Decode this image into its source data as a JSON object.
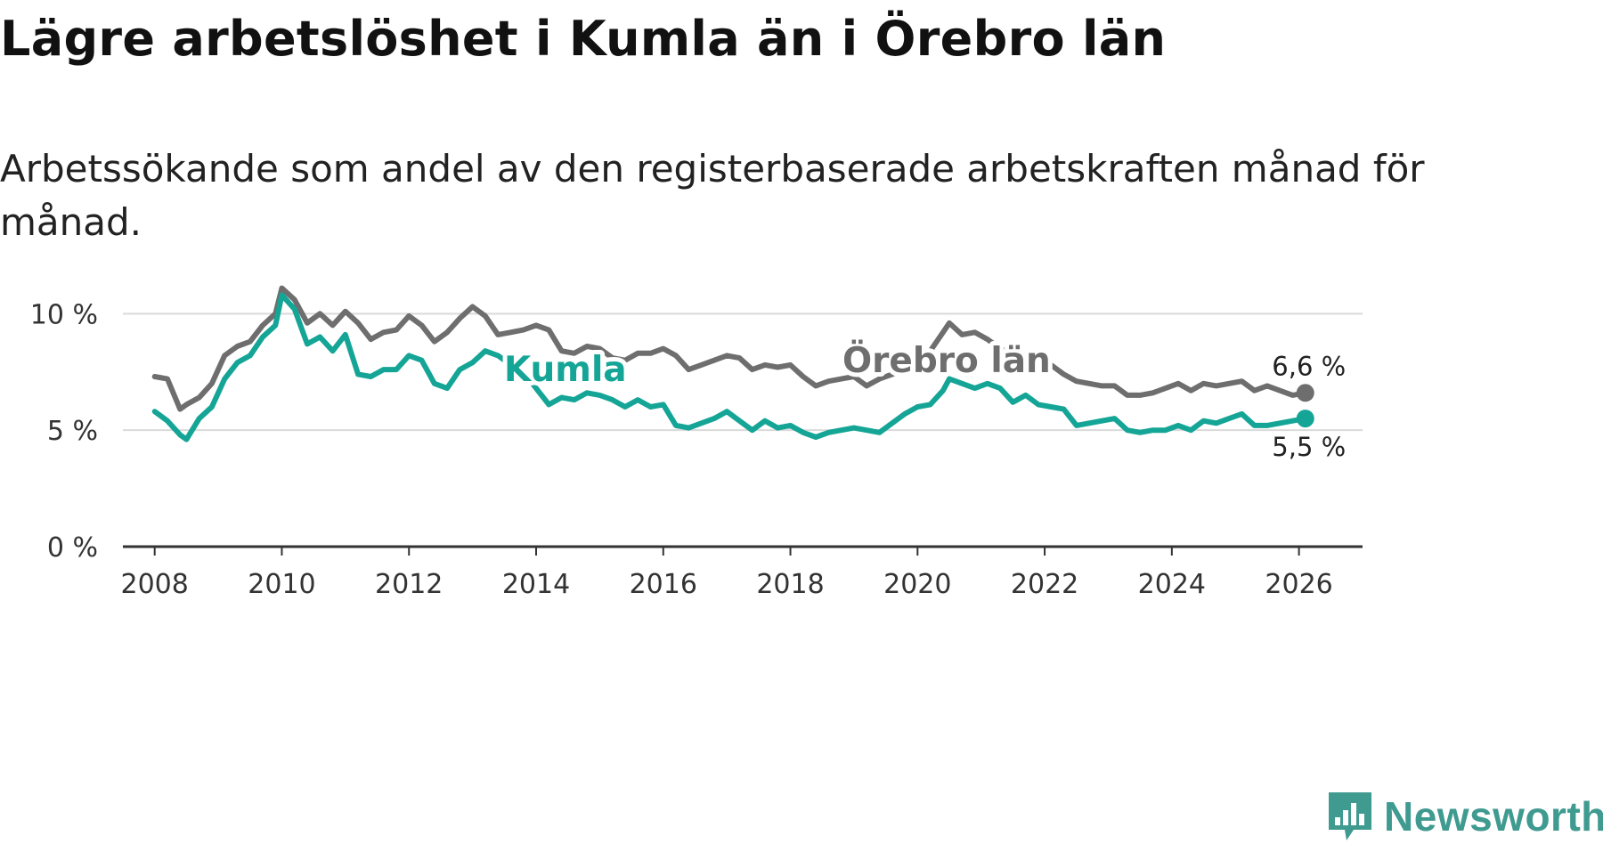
{
  "title": "Lägre arbetslöshet i Kumla än i Örebro län",
  "subtitle": "Arbetssökande som andel av den registerbaserade arbetskraften månad för månad.",
  "colors": {
    "kumla": "#14a596",
    "orebro": "#6e6e6e",
    "grid": "#d9d9d9",
    "axis": "#333333",
    "logo": "#3f9a90"
  },
  "logo": {
    "text": "Newsworthy",
    "icon": "bar-chart-badge-icon"
  },
  "chart_data": {
    "type": "line",
    "title": "Lägre arbetslöshet i Kumla än i Örebro län",
    "xlabel": "",
    "ylabel": "",
    "ylim": [
      0,
      12
    ],
    "xlim": [
      2007.5,
      2027
    ],
    "grid": true,
    "y_ticks": [
      0,
      5,
      10
    ],
    "y_tick_labels": [
      "0 %",
      "5 %",
      "10 %"
    ],
    "x_ticks": [
      2008,
      2010,
      2012,
      2014,
      2016,
      2018,
      2020,
      2022,
      2024,
      2026
    ],
    "x_tick_labels": [
      "2008",
      "2010",
      "2012",
      "2014",
      "2016",
      "2018",
      "2020",
      "2022",
      "2024",
      "2026"
    ],
    "series": [
      {
        "name": "Örebro län",
        "label": "Örebro län",
        "end_label": "6,6 %",
        "x": [
          2008.0,
          2008.2,
          2008.4,
          2008.5,
          2008.7,
          2008.9,
          2009.1,
          2009.3,
          2009.5,
          2009.7,
          2009.9,
          2010.0,
          2010.2,
          2010.4,
          2010.6,
          2010.8,
          2011.0,
          2011.2,
          2011.4,
          2011.6,
          2011.8,
          2012.0,
          2012.2,
          2012.4,
          2012.6,
          2012.8,
          2013.0,
          2013.2,
          2013.4,
          2013.6,
          2013.8,
          2014.0,
          2014.2,
          2014.4,
          2014.6,
          2014.8,
          2015.0,
          2015.2,
          2015.4,
          2015.6,
          2015.8,
          2016.0,
          2016.2,
          2016.4,
          2016.6,
          2016.8,
          2017.0,
          2017.2,
          2017.4,
          2017.6,
          2017.8,
          2018.0,
          2018.2,
          2018.4,
          2018.6,
          2018.8,
          2019.0,
          2019.2,
          2019.4,
          2019.6,
          2019.8,
          2020.0,
          2020.2,
          2020.4,
          2020.5,
          2020.7,
          2020.9,
          2021.1,
          2021.3,
          2021.5,
          2021.7,
          2021.9,
          2022.1,
          2022.3,
          2022.5,
          2022.7,
          2022.9,
          2023.1,
          2023.3,
          2023.5,
          2023.7,
          2023.9,
          2024.1,
          2024.3,
          2024.5,
          2024.7,
          2024.9,
          2025.1,
          2025.3,
          2025.5,
          2025.7,
          2025.9,
          2026.1
        ],
        "values": [
          7.3,
          7.2,
          5.9,
          6.1,
          6.4,
          7.0,
          8.2,
          8.6,
          8.8,
          9.5,
          10.0,
          11.1,
          10.6,
          9.6,
          10.0,
          9.5,
          10.1,
          9.6,
          8.9,
          9.2,
          9.3,
          9.9,
          9.5,
          8.8,
          9.2,
          9.8,
          10.3,
          9.9,
          9.1,
          9.2,
          9.3,
          9.5,
          9.3,
          8.4,
          8.3,
          8.6,
          8.5,
          8.1,
          8.0,
          8.3,
          8.3,
          8.5,
          8.2,
          7.6,
          7.8,
          8.0,
          8.2,
          8.1,
          7.6,
          7.8,
          7.7,
          7.8,
          7.3,
          6.9,
          7.1,
          7.2,
          7.3,
          6.9,
          7.2,
          7.4,
          7.6,
          8.0,
          8.4,
          9.2,
          9.6,
          9.1,
          9.2,
          8.9,
          8.5,
          8.3,
          7.8,
          7.7,
          7.8,
          7.4,
          7.1,
          7.0,
          6.9,
          6.9,
          6.5,
          6.5,
          6.6,
          6.8,
          7.0,
          6.7,
          7.0,
          6.9,
          7.0,
          7.1,
          6.7,
          6.9,
          6.7,
          6.5,
          6.6
        ]
      },
      {
        "name": "Kumla",
        "label": "Kumla",
        "end_label": "5,5 %",
        "x": [
          2008.0,
          2008.2,
          2008.4,
          2008.5,
          2008.7,
          2008.9,
          2009.1,
          2009.3,
          2009.5,
          2009.7,
          2009.9,
          2010.0,
          2010.2,
          2010.4,
          2010.6,
          2010.8,
          2011.0,
          2011.2,
          2011.4,
          2011.6,
          2011.8,
          2012.0,
          2012.2,
          2012.4,
          2012.6,
          2012.8,
          2013.0,
          2013.2,
          2013.4,
          2013.6,
          2013.8,
          2014.0,
          2014.2,
          2014.4,
          2014.6,
          2014.8,
          2015.0,
          2015.2,
          2015.4,
          2015.6,
          2015.8,
          2016.0,
          2016.2,
          2016.4,
          2016.6,
          2016.8,
          2017.0,
          2017.2,
          2017.4,
          2017.6,
          2017.8,
          2018.0,
          2018.2,
          2018.4,
          2018.6,
          2018.8,
          2019.0,
          2019.2,
          2019.4,
          2019.6,
          2019.8,
          2020.0,
          2020.2,
          2020.4,
          2020.5,
          2020.7,
          2020.9,
          2021.1,
          2021.3,
          2021.5,
          2021.7,
          2021.9,
          2022.1,
          2022.3,
          2022.5,
          2022.7,
          2022.9,
          2023.1,
          2023.3,
          2023.5,
          2023.7,
          2023.9,
          2024.1,
          2024.3,
          2024.5,
          2024.7,
          2024.9,
          2025.1,
          2025.3,
          2025.5,
          2025.7,
          2025.9,
          2026.1
        ],
        "values": [
          5.8,
          5.4,
          4.8,
          4.6,
          5.5,
          6.0,
          7.2,
          7.9,
          8.2,
          9.0,
          9.5,
          10.8,
          10.2,
          8.7,
          9.0,
          8.4,
          9.1,
          7.4,
          7.3,
          7.6,
          7.6,
          8.2,
          8.0,
          7.0,
          6.8,
          7.6,
          7.9,
          8.4,
          8.2,
          7.8,
          7.5,
          6.8,
          6.1,
          6.4,
          6.3,
          6.6,
          6.5,
          6.3,
          6.0,
          6.3,
          6.0,
          6.1,
          5.2,
          5.1,
          5.3,
          5.5,
          5.8,
          5.4,
          5.0,
          5.4,
          5.1,
          5.2,
          4.9,
          4.7,
          4.9,
          5.0,
          5.1,
          5.0,
          4.9,
          5.3,
          5.7,
          6.0,
          6.1,
          6.7,
          7.2,
          7.0,
          6.8,
          7.0,
          6.8,
          6.2,
          6.5,
          6.1,
          6.0,
          5.9,
          5.2,
          5.3,
          5.4,
          5.5,
          5.0,
          4.9,
          5.0,
          5.0,
          5.2,
          5.0,
          5.4,
          5.3,
          5.5,
          5.7,
          5.2,
          5.2,
          5.3,
          5.4,
          5.5
        ]
      }
    ]
  }
}
